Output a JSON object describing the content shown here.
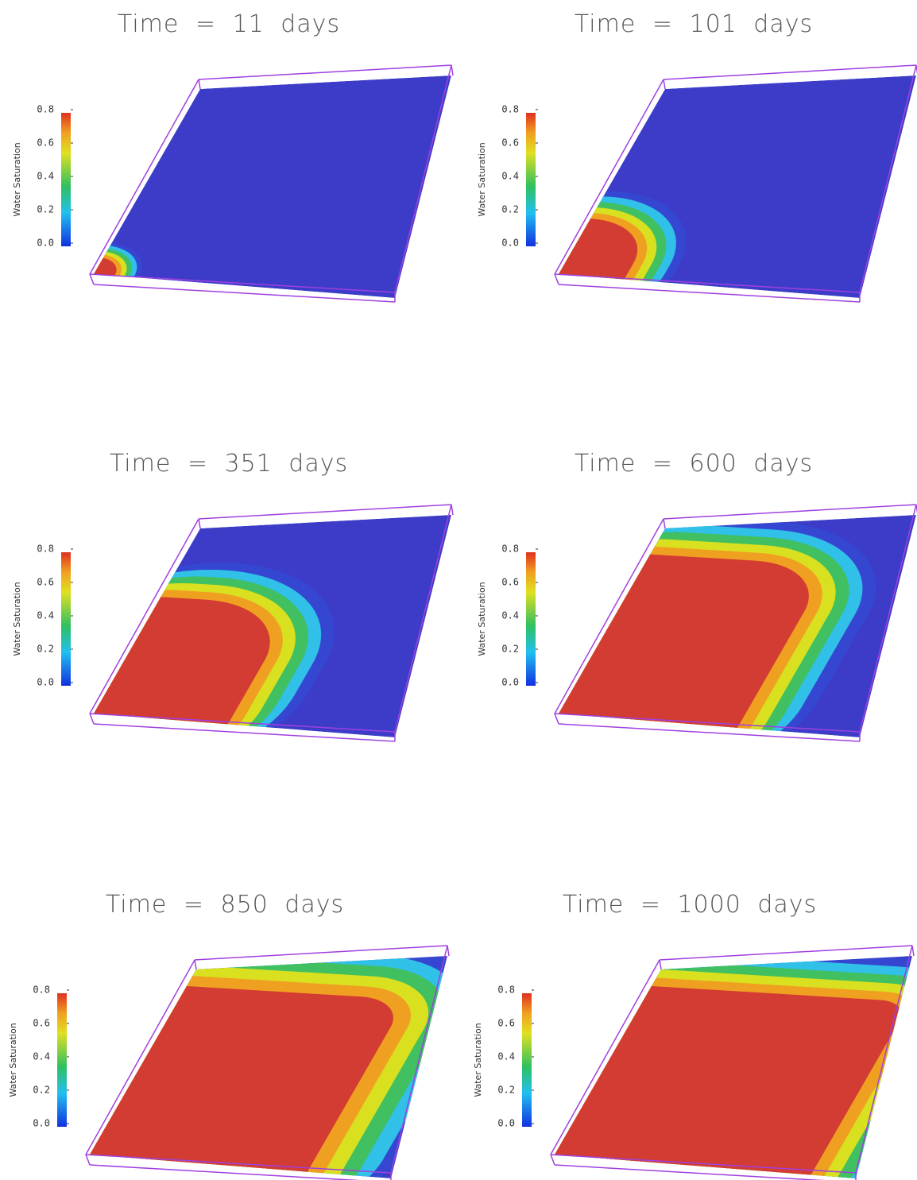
{
  "panels": [
    {
      "title": "Time = 11 days",
      "colorbar": {
        "label": "Water Saturation",
        "ticks": [
          "0.0",
          "0.2",
          "0.4",
          "0.6",
          "0.8"
        ]
      }
    },
    {
      "title": "Time = 101 days",
      "colorbar": {
        "label": "Water Saturation",
        "ticks": [
          "0.0",
          "0.2",
          "0.4",
          "0.6",
          "0.8"
        ]
      }
    },
    {
      "title": "Time = 351 days",
      "colorbar": {
        "label": "Water Saturation",
        "ticks": [
          "0.0",
          "0.2",
          "0.4",
          "0.6",
          "0.8"
        ]
      }
    },
    {
      "title": "Time = 600 days",
      "colorbar": {
        "label": "Water Saturation",
        "ticks": [
          "0.0",
          "0.2",
          "0.4",
          "0.6",
          "0.8"
        ]
      }
    },
    {
      "title": "Time = 850 days",
      "colorbar": {
        "label": "Water Saturation",
        "ticks": [
          "0.0",
          "0.2",
          "0.4",
          "0.6",
          "0.8"
        ]
      }
    },
    {
      "title": "Time = 1000 days",
      "colorbar": {
        "label": "Water Saturation",
        "ticks": [
          "0.0",
          "0.2",
          "0.4",
          "0.6",
          "0.8"
        ]
      }
    }
  ]
}
